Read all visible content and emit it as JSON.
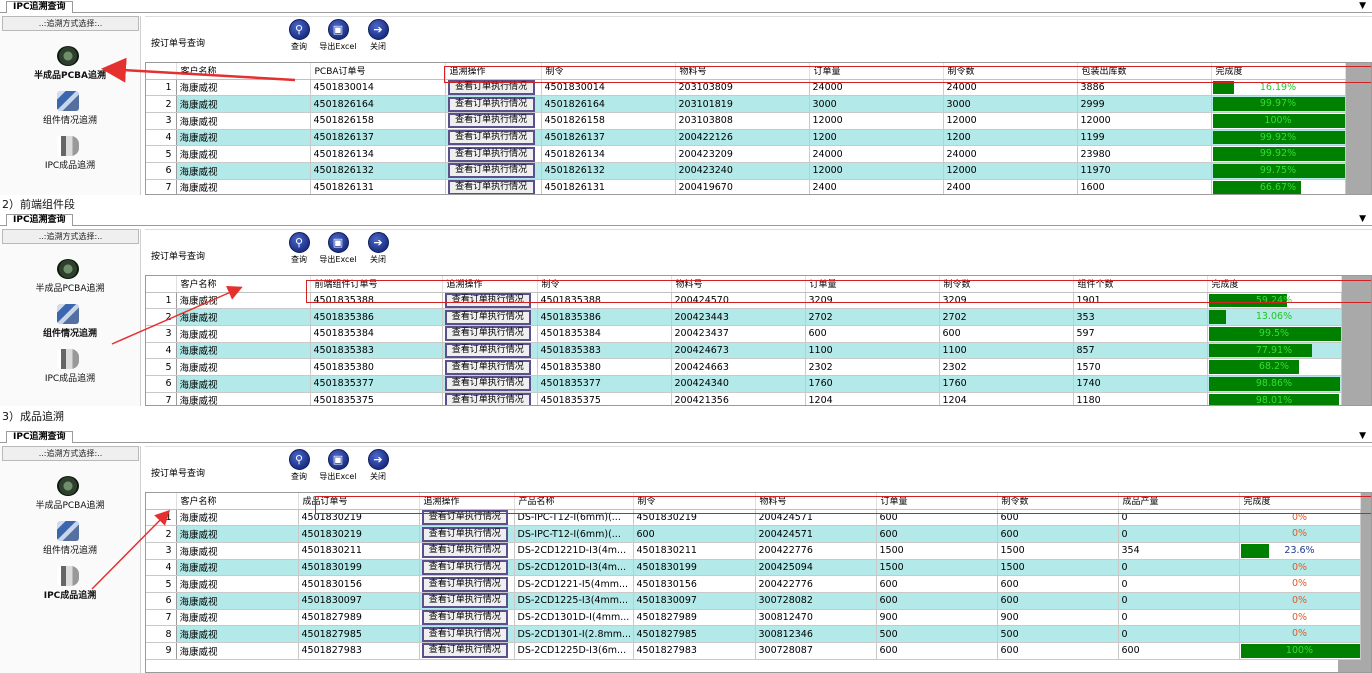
{
  "tab_title": "IPC追溯查询",
  "tab_arrow": "▼",
  "sidebar": {
    "header": "..:追溯方式选择:..",
    "items": [
      {
        "label": "半成品PCBA追溯",
        "icon": "pcba-board-icon"
      },
      {
        "label": "组件情况追溯",
        "icon": "module-icon"
      },
      {
        "label": "IPC成品追溯",
        "icon": "camera-icon"
      }
    ]
  },
  "toolbar": {
    "search_label": "按订单号查询",
    "search_value": "",
    "query_label": "查询",
    "export_label": "导出Excel",
    "close_label": "关闭",
    "query_glyph": "⚲",
    "export_glyph": "▣",
    "close_glyph": "➔"
  },
  "action_label": "查看订单执行情况",
  "colors": {
    "row_alt": "#b4e9e9",
    "progress": "#008000",
    "highlight_box": "#d32020",
    "arrow": "#e53030"
  },
  "panels": [
    {
      "section_label": "",
      "active_sidebar": 0,
      "columns": [
        "客户名称",
        "PCBA订单号",
        "追溯操作",
        "制令",
        "物料号",
        "订单量",
        "制令数",
        "包装出库数",
        "完成度"
      ],
      "rows": [
        {
          "n": "1",
          "cells": [
            "海康威视",
            "4501830014",
            "",
            "4501830014",
            "203103809",
            "24000",
            "24000",
            "3886"
          ],
          "pct": "16.19%",
          "val": 16.19
        },
        {
          "n": "2",
          "cells": [
            "海康威视",
            "4501826164",
            "",
            "4501826164",
            "203101819",
            "3000",
            "3000",
            "2999"
          ],
          "pct": "99.97%",
          "val": 99.97
        },
        {
          "n": "3",
          "cells": [
            "海康威视",
            "4501826158",
            "",
            "4501826158",
            "203103808",
            "12000",
            "12000",
            "12000"
          ],
          "pct": "100%",
          "val": 100
        },
        {
          "n": "4",
          "cells": [
            "海康威视",
            "4501826137",
            "",
            "4501826137",
            "200422126",
            "1200",
            "1200",
            "1199"
          ],
          "pct": "99.92%",
          "val": 99.92
        },
        {
          "n": "5",
          "cells": [
            "海康威视",
            "4501826134",
            "",
            "4501826134",
            "200423209",
            "24000",
            "24000",
            "23980"
          ],
          "pct": "99.92%",
          "val": 99.92
        },
        {
          "n": "6",
          "cells": [
            "海康威视",
            "4501826132",
            "",
            "4501826132",
            "200423240",
            "12000",
            "12000",
            "11970"
          ],
          "pct": "99.75%",
          "val": 99.75
        },
        {
          "n": "7",
          "cells": [
            "海康威视",
            "4501826131",
            "",
            "4501826131",
            "200419670",
            "2400",
            "2400",
            "1600"
          ],
          "pct": "66.67%",
          "val": 66.67
        }
      ]
    },
    {
      "section_label": "2）前端组件段",
      "active_sidebar": 1,
      "columns": [
        "客户名称",
        "前端组件订单号",
        "追溯操作",
        "制令",
        "物料号",
        "订单量",
        "制令数",
        "组件个数",
        "完成度"
      ],
      "rows": [
        {
          "n": "1",
          "cells": [
            "海康威视",
            "4501835388",
            "",
            "4501835388",
            "200424570",
            "3209",
            "3209",
            "1901"
          ],
          "pct": "59.24%",
          "val": 59.24
        },
        {
          "n": "2",
          "cells": [
            "海康威视",
            "4501835386",
            "",
            "4501835386",
            "200423443",
            "2702",
            "2702",
            "353"
          ],
          "pct": "13.06%",
          "val": 13.06
        },
        {
          "n": "3",
          "cells": [
            "海康威视",
            "4501835384",
            "",
            "4501835384",
            "200423437",
            "600",
            "600",
            "597"
          ],
          "pct": "99.5%",
          "val": 99.5
        },
        {
          "n": "4",
          "cells": [
            "海康威视",
            "4501835383",
            "",
            "4501835383",
            "200424673",
            "1100",
            "1100",
            "857"
          ],
          "pct": "77.91%",
          "val": 77.91
        },
        {
          "n": "5",
          "cells": [
            "海康威视",
            "4501835380",
            "",
            "4501835380",
            "200424663",
            "2302",
            "2302",
            "1570"
          ],
          "pct": "68.2%",
          "val": 68.2
        },
        {
          "n": "6",
          "cells": [
            "海康威视",
            "4501835377",
            "",
            "4501835377",
            "200424340",
            "1760",
            "1760",
            "1740"
          ],
          "pct": "98.86%",
          "val": 98.86
        },
        {
          "n": "7",
          "cells": [
            "海康威视",
            "4501835375",
            "",
            "4501835375",
            "200421356",
            "1204",
            "1204",
            "1180"
          ],
          "pct": "98.01%",
          "val": 98.01
        }
      ]
    },
    {
      "section_label": "3）成品追溯",
      "active_sidebar": 2,
      "columns": [
        "客户名称",
        "成品订单号",
        "追溯操作",
        "产品名称",
        "制令",
        "物料号",
        "订单量",
        "制令数",
        "成品产量",
        "完成度"
      ],
      "rows": [
        {
          "n": "1",
          "cells": [
            "海康威视",
            "4501830219",
            "",
            "DS-IPC-T12-I(6mm)(...",
            "4501830219",
            "200424571",
            "600",
            "600",
            "0"
          ],
          "pct": "0%",
          "val": 0
        },
        {
          "n": "2",
          "cells": [
            "海康威视",
            "4501830219",
            "",
            "DS-IPC-T12-I(6mm)(...",
            "600",
            "200424571",
            "600",
            "600",
            "0"
          ],
          "pct": "0%",
          "val": 0
        },
        {
          "n": "3",
          "cells": [
            "海康威视",
            "4501830211",
            "",
            "DS-2CD1221D-I3(4m...",
            "4501830211",
            "200422776",
            "1500",
            "1500",
            "354"
          ],
          "pct": "23.6%",
          "val": 23.6
        },
        {
          "n": "4",
          "cells": [
            "海康威视",
            "4501830199",
            "",
            "DS-2CD1201D-I3(4m...",
            "4501830199",
            "200425094",
            "1500",
            "1500",
            "0"
          ],
          "pct": "0%",
          "val": 0
        },
        {
          "n": "5",
          "cells": [
            "海康威视",
            "4501830156",
            "",
            "DS-2CD1221-I5(4mm...",
            "4501830156",
            "200422776",
            "600",
            "600",
            "0"
          ],
          "pct": "0%",
          "val": 0
        },
        {
          "n": "6",
          "cells": [
            "海康威视",
            "4501830097",
            "",
            "DS-2CD1225-I3(4mm...",
            "4501830097",
            "300728082",
            "600",
            "600",
            "0"
          ],
          "pct": "0%",
          "val": 0
        },
        {
          "n": "7",
          "cells": [
            "海康威视",
            "4501827989",
            "",
            "DS-2CD1301D-I(4mm...",
            "4501827989",
            "300812470",
            "900",
            "900",
            "0"
          ],
          "pct": "0%",
          "val": 0
        },
        {
          "n": "8",
          "cells": [
            "海康威视",
            "4501827985",
            "",
            "DS-2CD1301-I(2.8mm...",
            "4501827985",
            "300812346",
            "500",
            "500",
            "0"
          ],
          "pct": "0%",
          "val": 0
        },
        {
          "n": "9",
          "cells": [
            "海康威视",
            "4501827983",
            "",
            "DS-2CD1225D-I3(6m...",
            "4501827983",
            "300728087",
            "600",
            "600",
            "600"
          ],
          "pct": "100%",
          "val": 100
        }
      ]
    }
  ]
}
